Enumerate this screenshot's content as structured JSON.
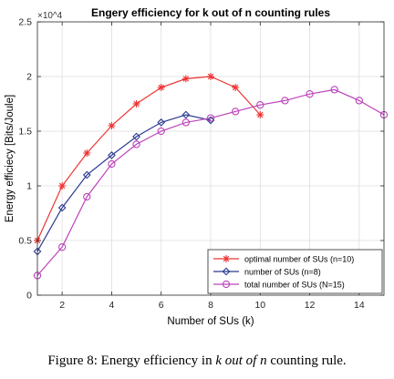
{
  "chart_data": {
    "type": "line",
    "title": "Engery efficiency for  k out of n counting rules",
    "xlabel": "Number of SUs (k)",
    "ylabel": "Energy efficiecy [Bits/Joule]",
    "y_multiplier": "×10^4",
    "xlim": [
      1,
      15
    ],
    "ylim": [
      0,
      2.5
    ],
    "xticks": [
      2,
      4,
      6,
      8,
      10,
      12,
      14
    ],
    "yticks": [
      0,
      0.5,
      1,
      1.5,
      2,
      2.5
    ],
    "ytick_labels": [
      "0",
      "0.5",
      "1",
      "1.5",
      "2",
      "2.5"
    ],
    "grid": true,
    "legend_position": "bottom-right",
    "series": [
      {
        "name": "optimal number of SUs (n=10)",
        "color": "#ee3333",
        "marker": "asterisk",
        "x": [
          1,
          2,
          3,
          4,
          5,
          6,
          7,
          8,
          9,
          10
        ],
        "y": [
          0.5,
          1.0,
          1.3,
          1.55,
          1.75,
          1.9,
          1.98,
          2.0,
          1.9,
          1.65
        ]
      },
      {
        "name": "number of SUs (n=8)",
        "color": "#2b3a8f",
        "marker": "diamond",
        "x": [
          1,
          2,
          3,
          4,
          5,
          6,
          7,
          8
        ],
        "y": [
          0.4,
          0.8,
          1.1,
          1.28,
          1.45,
          1.58,
          1.65,
          1.6
        ]
      },
      {
        "name": "total number of SUs (N=15)",
        "color": "#bb44bb",
        "marker": "circle",
        "x": [
          1,
          2,
          3,
          4,
          5,
          6,
          7,
          8,
          9,
          10,
          11,
          12,
          13,
          14,
          15
        ],
        "y": [
          0.18,
          0.44,
          0.9,
          1.2,
          1.38,
          1.5,
          1.58,
          1.62,
          1.68,
          1.74,
          1.78,
          1.84,
          1.88,
          1.78,
          1.65
        ]
      }
    ]
  },
  "caption": {
    "prefix": "Figure 8: Energy efficiency in ",
    "italic": "k out of n",
    "suffix": " counting rule."
  }
}
